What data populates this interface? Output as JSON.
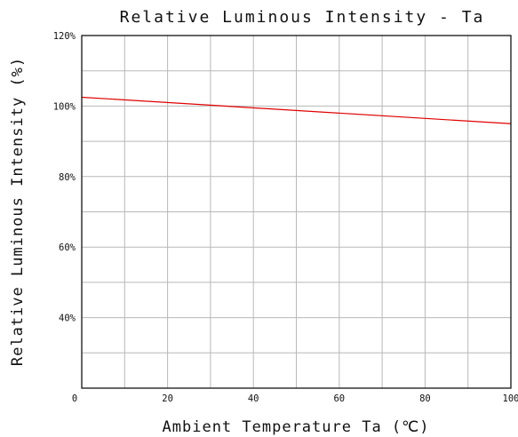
{
  "chart_data": {
    "type": "line",
    "title": "Relative Luminous Intensity - Ta",
    "xlabel": "Ambient Temperature Ta (℃)",
    "ylabel": "Relative Luminous Intensity (%)",
    "xlim": [
      0,
      100
    ],
    "ylim": [
      20,
      120
    ],
    "x_ticks": [
      0,
      20,
      40,
      60,
      80,
      100
    ],
    "x_tick_labels": [
      "0",
      "20",
      "40",
      "60",
      "80",
      "100"
    ],
    "y_ticks": [
      40,
      60,
      80,
      100,
      120
    ],
    "y_tick_labels": [
      "40%",
      "60%",
      "80%",
      "100%",
      "120%"
    ],
    "x_grid_step": 10,
    "y_grid_step": 10,
    "grid": true,
    "series_color": "#e00000",
    "series": [
      {
        "x": [
          0,
          100
        ],
        "y": [
          102.5,
          95
        ]
      }
    ]
  }
}
